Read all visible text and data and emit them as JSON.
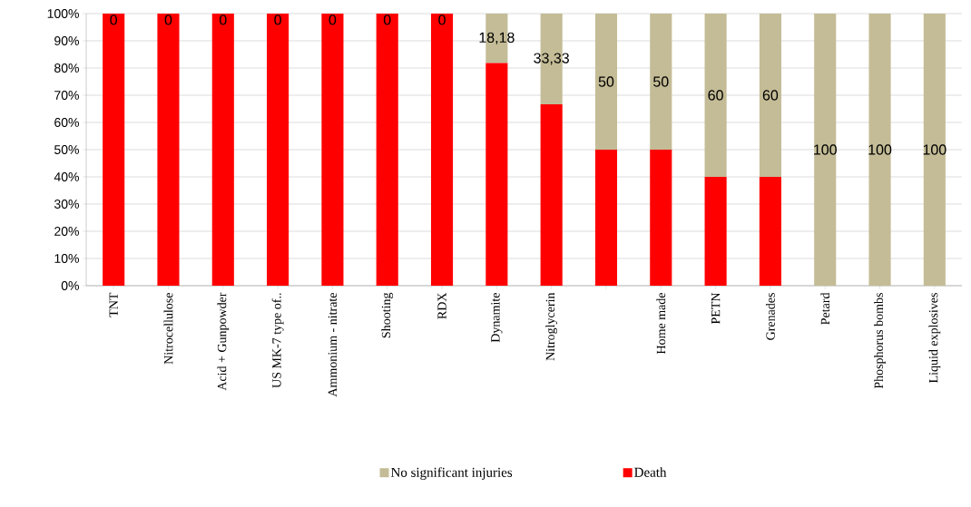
{
  "chart_data": {
    "type": "bar",
    "stacked": true,
    "categories": [
      "TNT",
      "Nitrocellulose",
      "Acid +  Gunpowder",
      "US MK-7 type of..",
      "Ammonium - nitrate",
      "Shooting",
      "RDX",
      "Dynamite",
      "Nitroglycerin",
      null,
      "Home made",
      "PETN",
      "Grenades",
      "Petard",
      "Phosphorus bombs",
      "Liquid explosives"
    ],
    "series": [
      {
        "name": "Death",
        "color": "#ff0000",
        "values": [
          100,
          100,
          100,
          100,
          100,
          100,
          100,
          81.82,
          66.67,
          50,
          50,
          40,
          40,
          0,
          0,
          0
        ]
      },
      {
        "name": "No significant injuries",
        "color": "#c4bc96",
        "values": [
          0,
          0,
          0,
          0,
          0,
          0,
          0,
          18.18,
          33.33,
          50,
          50,
          60,
          60,
          100,
          100,
          100
        ],
        "value_labels": [
          "0",
          "0",
          "0",
          "0",
          "0",
          "0",
          "0",
          "18,18",
          "33,33",
          "50",
          "50",
          "60",
          "60",
          "100",
          "100",
          "100"
        ]
      }
    ],
    "ylim": [
      0,
      100
    ],
    "yticks": [
      {
        "value": 0,
        "label": "0%"
      },
      {
        "value": 10,
        "label": "10%"
      },
      {
        "value": 20,
        "label": "20%"
      },
      {
        "value": 30,
        "label": "30%"
      },
      {
        "value": 40,
        "label": "40%"
      },
      {
        "value": 50,
        "label": "50%"
      },
      {
        "value": 60,
        "label": "60%"
      },
      {
        "value": 70,
        "label": "70%"
      },
      {
        "value": 80,
        "label": "80%"
      },
      {
        "value": 90,
        "label": "90%"
      },
      {
        "value": 100,
        "label": "100%"
      }
    ],
    "grid": "y",
    "legend": "bottom"
  }
}
